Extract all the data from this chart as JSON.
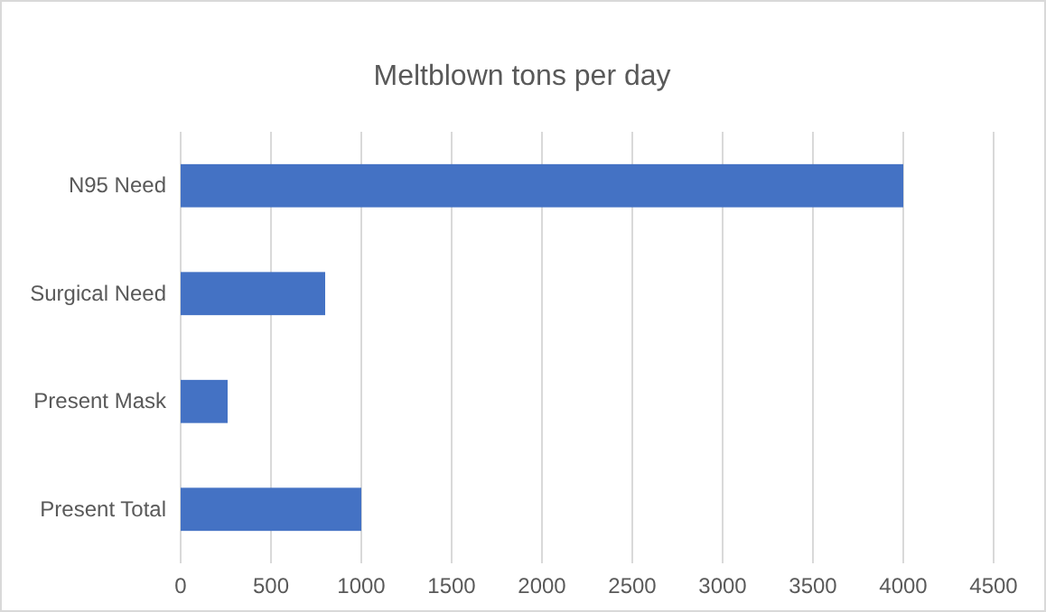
{
  "chart_data": {
    "type": "bar",
    "orientation": "horizontal",
    "title": "Meltblown tons per day",
    "categories": [
      "N95 Need",
      "Surgical Need",
      "Present Mask",
      "Present Total"
    ],
    "values": [
      4000,
      800,
      260,
      1000
    ],
    "color": "#4472c4",
    "xlim": [
      0,
      4500
    ],
    "xticks": [
      0,
      500,
      1000,
      1500,
      2000,
      2500,
      3000,
      3500,
      4000,
      4500
    ],
    "grid": "x"
  }
}
